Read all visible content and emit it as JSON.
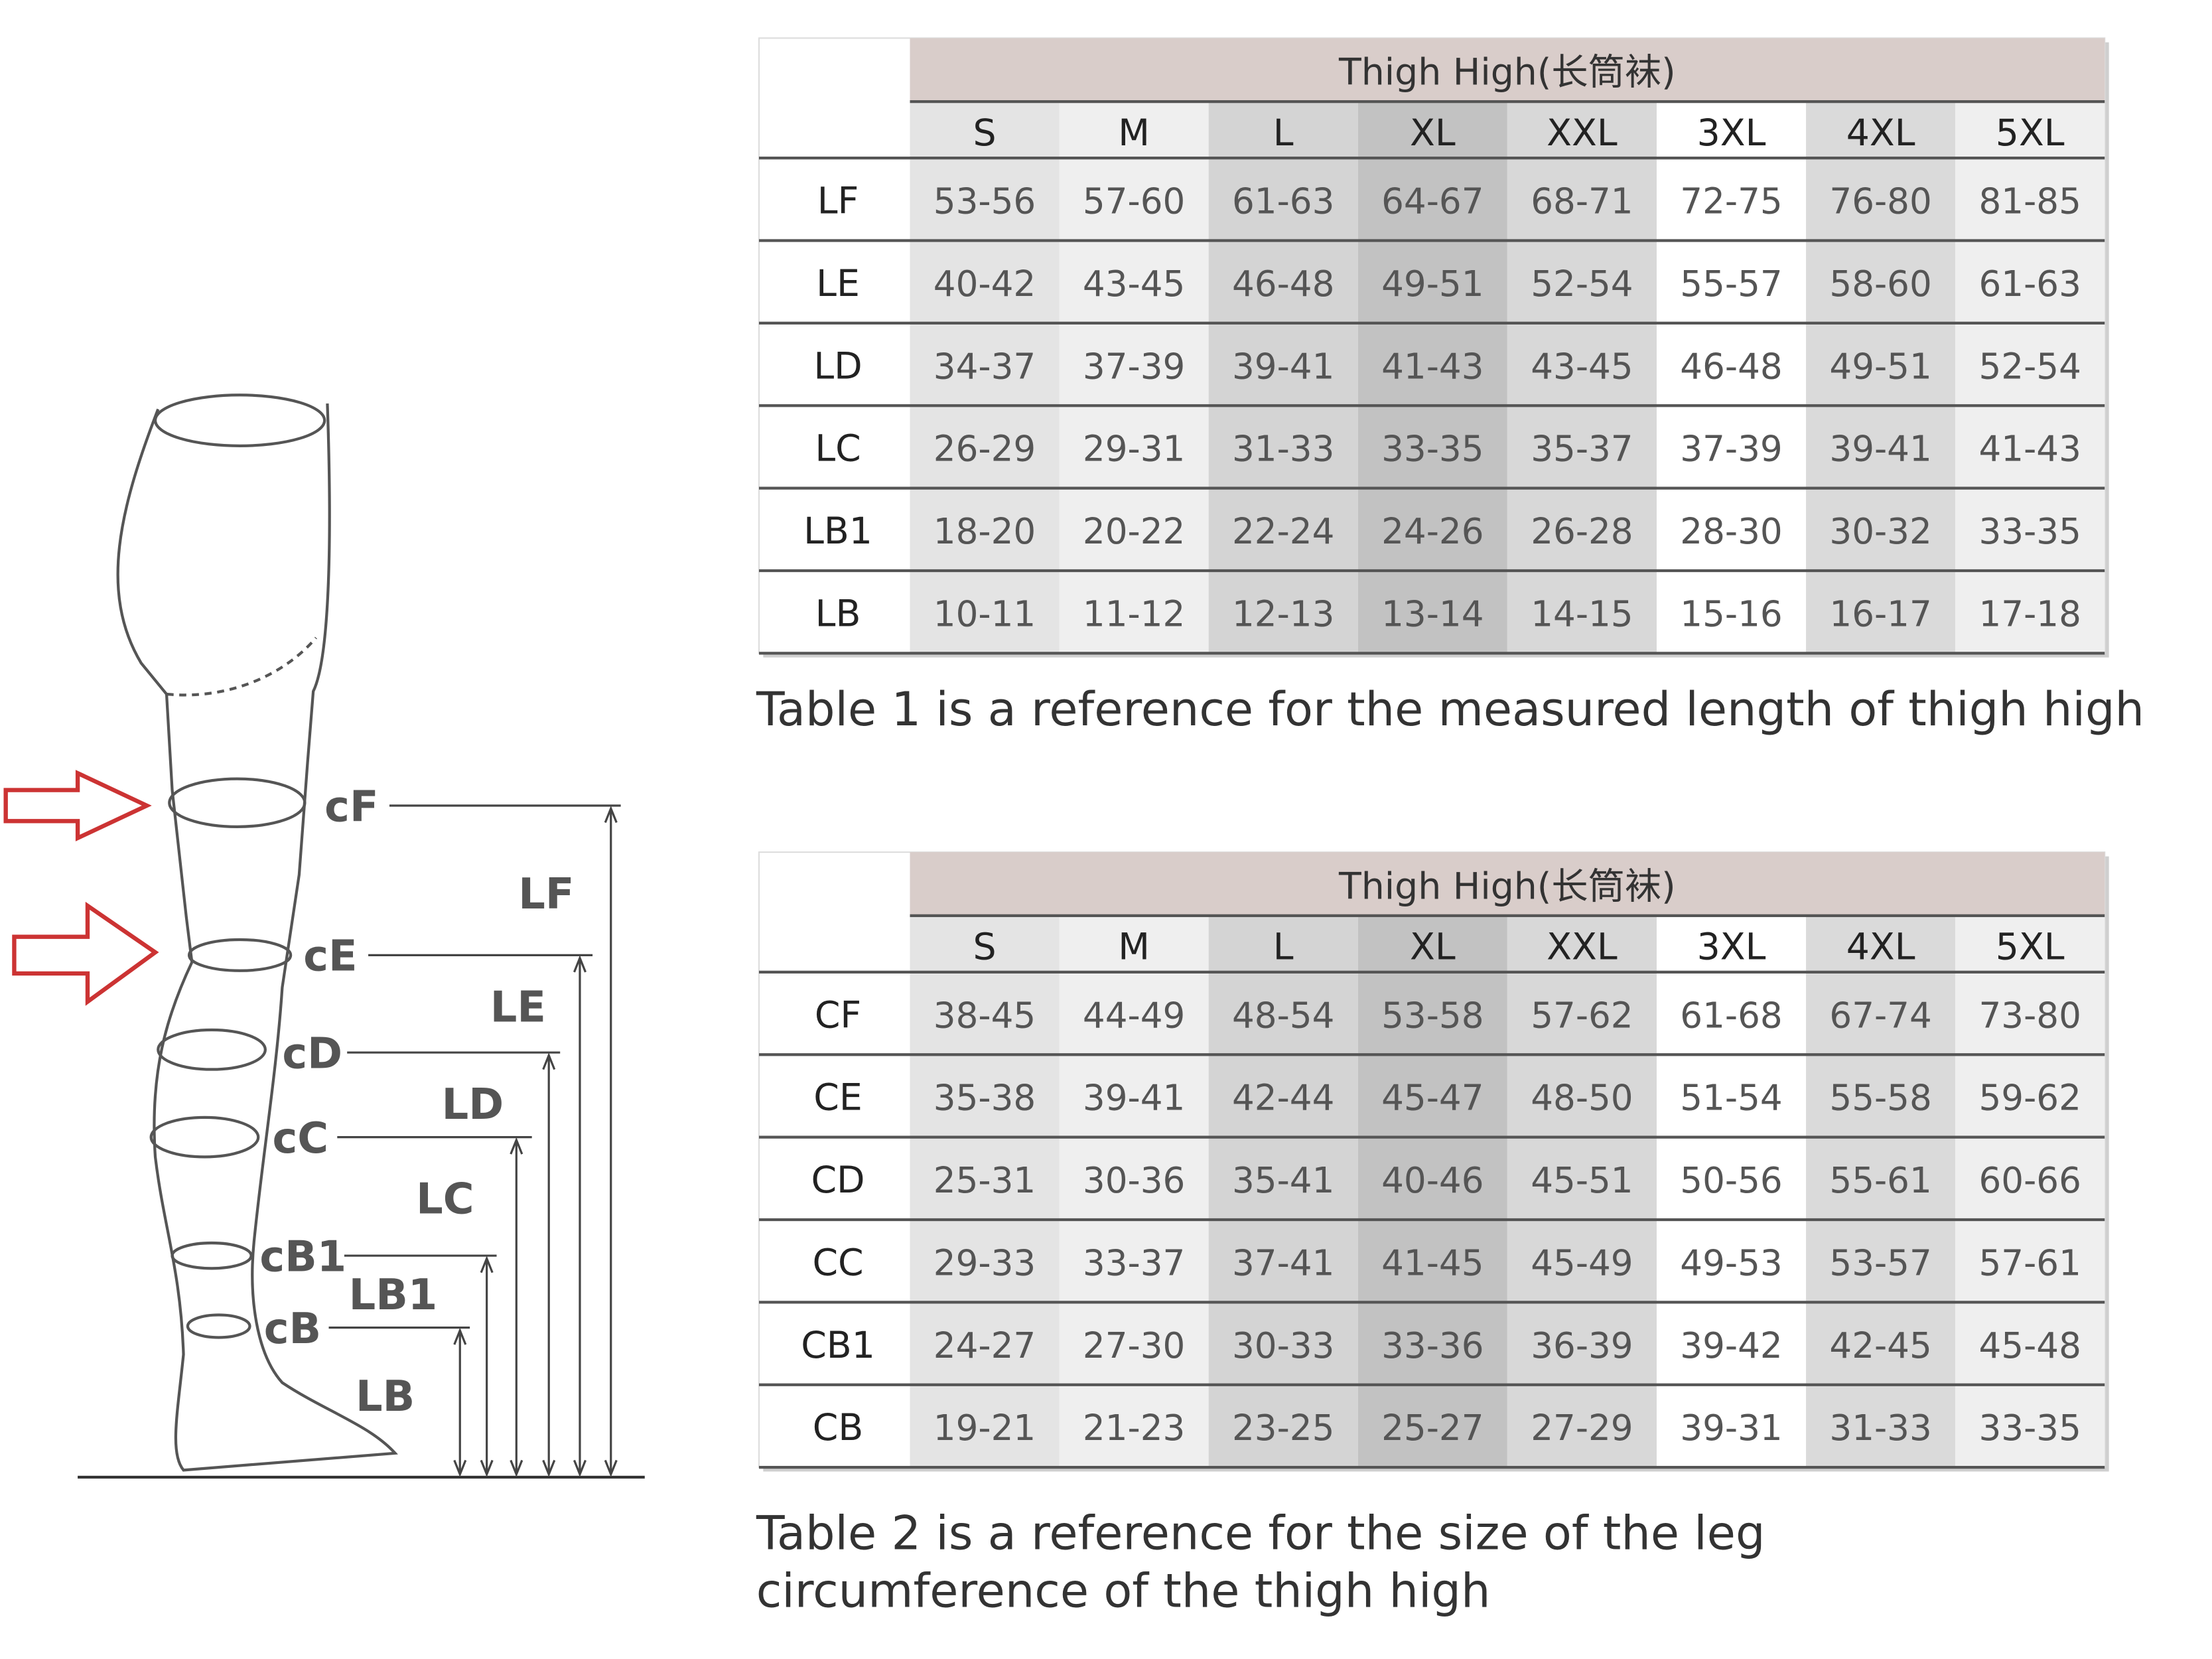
{
  "diagram": {
    "circumference_labels": [
      "cF",
      "cE",
      "cD",
      "cC",
      "cB1",
      "cB"
    ],
    "length_labels": [
      "LF",
      "LE",
      "LD",
      "LC",
      "LB1",
      "LB"
    ]
  },
  "table1": {
    "title": "Thigh High(长筒袜)",
    "sizes": [
      "S",
      "M",
      "L",
      "XL",
      "XXL",
      "3XL",
      "4XL",
      "5XL"
    ],
    "rows": [
      {
        "label": "LF",
        "values": [
          "53-56",
          "57-60",
          "61-63",
          "64-67",
          "68-71",
          "72-75",
          "76-80",
          "81-85"
        ]
      },
      {
        "label": "LE",
        "values": [
          "40-42",
          "43-45",
          "46-48",
          "49-51",
          "52-54",
          "55-57",
          "58-60",
          "61-63"
        ]
      },
      {
        "label": "LD",
        "values": [
          "34-37",
          "37-39",
          "39-41",
          "41-43",
          "43-45",
          "46-48",
          "49-51",
          "52-54"
        ]
      },
      {
        "label": "LC",
        "values": [
          "26-29",
          "29-31",
          "31-33",
          "33-35",
          "35-37",
          "37-39",
          "39-41",
          "41-43"
        ]
      },
      {
        "label": "LB1",
        "values": [
          "18-20",
          "20-22",
          "22-24",
          "24-26",
          "26-28",
          "28-30",
          "30-32",
          "33-35"
        ]
      },
      {
        "label": "LB",
        "values": [
          "10-11",
          "11-12",
          "12-13",
          "13-14",
          "14-15",
          "15-16",
          "16-17",
          "17-18"
        ]
      }
    ],
    "caption": "Table 1 is a reference for the measured length of thigh high"
  },
  "table2": {
    "title": "Thigh High(长筒袜)",
    "sizes": [
      "S",
      "M",
      "L",
      "XL",
      "XXL",
      "3XL",
      "4XL",
      "5XL"
    ],
    "rows": [
      {
        "label": "CF",
        "values": [
          "38-45",
          "44-49",
          "48-54",
          "53-58",
          "57-62",
          "61-68",
          "67-74",
          "73-80"
        ]
      },
      {
        "label": "CE",
        "values": [
          "35-38",
          "39-41",
          "42-44",
          "45-47",
          "48-50",
          "51-54",
          "55-58",
          "59-62"
        ]
      },
      {
        "label": "CD",
        "values": [
          "25-31",
          "30-36",
          "35-41",
          "40-46",
          "45-51",
          "50-56",
          "55-61",
          "60-66"
        ]
      },
      {
        "label": "CC",
        "values": [
          "29-33",
          "33-37",
          "37-41",
          "41-45",
          "45-49",
          "49-53",
          "53-57",
          "57-61"
        ]
      },
      {
        "label": "CB1",
        "values": [
          "24-27",
          "27-30",
          "30-33",
          "33-36",
          "36-39",
          "39-42",
          "42-45",
          "45-48"
        ]
      },
      {
        "label": "CB",
        "values": [
          "19-21",
          "21-23",
          "23-25",
          "25-27",
          "27-29",
          "39-31",
          "31-33",
          "33-35"
        ]
      }
    ],
    "caption": "Table 2 is a reference for the size of the leg circumference of the thigh high"
  }
}
